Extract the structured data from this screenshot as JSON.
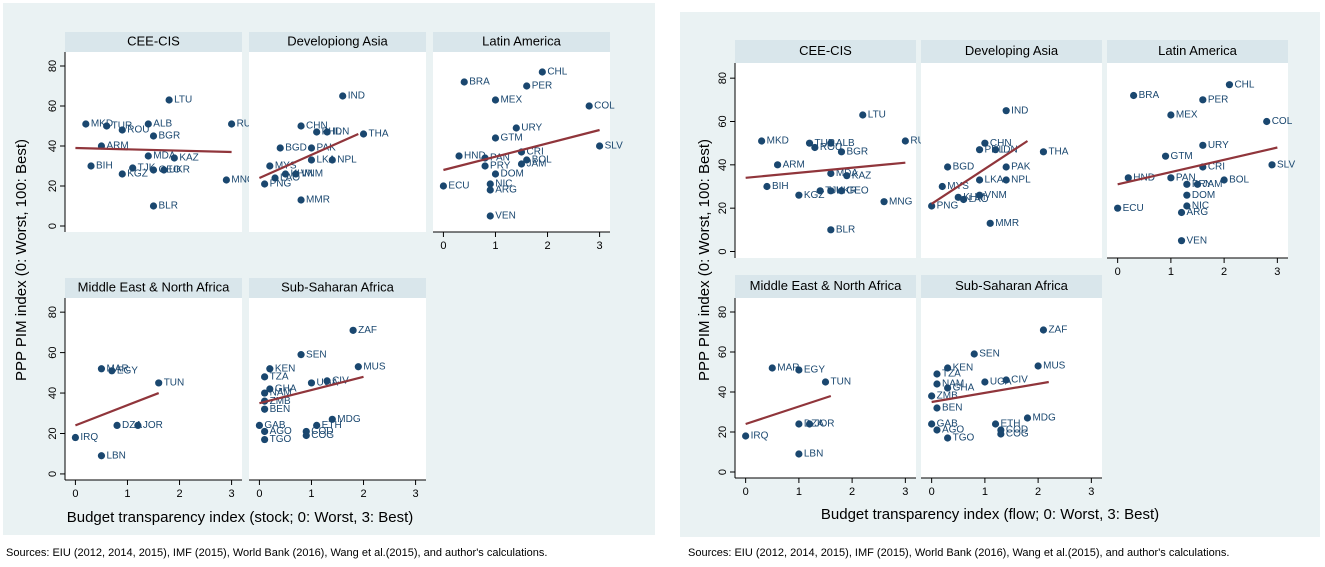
{
  "chart_data": [
    {
      "type": "scatter",
      "ylabel": "PPP PIM index (0: Worst, 100: Best)",
      "xlabel": "Budget transparency index (stock; 0: Worst, 3: Best)",
      "source": "Sources: EIU (2012, 2014, 2015), IMF (2015), World Bank (2016), Wang et al.(2015), and author's calculations.",
      "xlim": [
        -0.2,
        3.2
      ],
      "ylim": [
        -3,
        87
      ],
      "xticks": [
        0,
        1,
        2,
        3
      ],
      "yticks": [
        0,
        20,
        40,
        60,
        80
      ],
      "point_color": "#1a476f",
      "fit_color": "#90353b",
      "panels": [
        {
          "title": "CEE-CIS",
          "labels": [
            "LTU",
            "MKD",
            "TUR",
            "ROU",
            "ALB",
            "BGR",
            "RUS",
            "ARM",
            "MDA",
            "KAZ",
            "BIH",
            "TJK",
            "KGZ",
            "UKR",
            "GEO",
            "MNG",
            "BLR"
          ],
          "x": [
            1.8,
            0.2,
            0.6,
            0.9,
            1.4,
            1.5,
            3.0,
            0.5,
            1.4,
            1.9,
            0.3,
            1.1,
            0.9,
            1.7,
            1.5,
            2.9,
            1.5
          ],
          "values": [
            63,
            51,
            50,
            48,
            51,
            45,
            51,
            40,
            35,
            34,
            30,
            29,
            26,
            28,
            28,
            23,
            10
          ],
          "fit_x": [
            0,
            3
          ],
          "fit_y": [
            39,
            37
          ]
        },
        {
          "title": "Developiong Asia",
          "labels": [
            "IND",
            "CHN",
            "PHL",
            "IDN",
            "THA",
            "BGD",
            "PAK",
            "LKA",
            "NPL",
            "MYS",
            "KHM",
            "VNM",
            "LAO",
            "PNG",
            "MMR"
          ],
          "x": [
            1.6,
            0.8,
            1.1,
            1.3,
            2.0,
            0.4,
            1.0,
            1.0,
            1.4,
            0.2,
            0.5,
            0.7,
            0.3,
            0.1,
            0.8
          ],
          "values": [
            65,
            50,
            47,
            47,
            46,
            39,
            39,
            33,
            33,
            30,
            26,
            26,
            24,
            21,
            13
          ],
          "fit_x": [
            0,
            1.9
          ],
          "fit_y": [
            24,
            46
          ]
        },
        {
          "title": "Latin America",
          "labels": [
            "CHL",
            "BRA",
            "PER",
            "MEX",
            "COL",
            "URY",
            "GTM",
            "CRI",
            "SLV",
            "HND",
            "PAN",
            "BOL",
            "JAM",
            "PRY",
            "DOM",
            "NIC",
            "ARG",
            "ECU",
            "VEN"
          ],
          "x": [
            1.9,
            0.4,
            1.6,
            1.0,
            2.8,
            1.4,
            1.0,
            1.5,
            3.0,
            0.3,
            0.8,
            1.6,
            1.5,
            0.8,
            1.0,
            0.9,
            0.9,
            0,
            0.9
          ],
          "values": [
            77,
            72,
            70,
            63,
            60,
            49,
            44,
            37,
            40,
            35,
            34,
            33,
            31,
            30,
            26,
            21,
            18,
            20,
            5
          ],
          "fit_x": [
            0,
            3
          ],
          "fit_y": [
            28,
            48
          ]
        },
        {
          "title": "Middle East & North Africa",
          "labels": [
            "MAR",
            "EGY",
            "TUN",
            "DZA",
            "JOR",
            "IRQ",
            "LBN"
          ],
          "x": [
            0.5,
            0.7,
            1.6,
            0.8,
            1.2,
            0,
            0.5
          ],
          "values": [
            52,
            51,
            45,
            24,
            24,
            18,
            9
          ],
          "fit_x": [
            0,
            1.6
          ],
          "fit_y": [
            24,
            40
          ]
        },
        {
          "title": "Sub-Saharan Africa",
          "labels": [
            "ZAF",
            "SEN",
            "MUS",
            "KEN",
            "CIV",
            "UGA",
            "TZA",
            "GHA",
            "NAM",
            "ZMB",
            "BEN",
            "MDG",
            "ETH",
            "COD",
            "COG",
            "GAB",
            "AGO",
            "TGO"
          ],
          "x": [
            1.8,
            0.8,
            1.9,
            0.2,
            1.3,
            1.0,
            0.1,
            0.2,
            0.1,
            0.1,
            0.1,
            1.4,
            1.1,
            0.9,
            0.9,
            0,
            0.1,
            0.1
          ],
          "values": [
            71,
            59,
            53,
            52,
            46,
            45,
            48,
            42,
            40,
            36,
            32,
            27,
            24,
            21,
            19,
            24,
            21,
            17
          ],
          "fit_x": [
            0,
            2
          ],
          "fit_y": [
            35,
            48
          ]
        }
      ]
    },
    {
      "type": "scatter",
      "ylabel": "PPP PIM index (0: Worst, 100: Best)",
      "xlabel": "Budget transparency index (flow; 0: Worst, 3: Best)",
      "source": "Sources: EIU (2012, 2014, 2015), IMF (2015), World Bank (2016), Wang et al.(2015), and author's calculations.",
      "xlim": [
        -0.2,
        3.2
      ],
      "ylim": [
        -3,
        87
      ],
      "xticks": [
        0,
        1,
        2,
        3
      ],
      "yticks": [
        0,
        20,
        40,
        60,
        80
      ],
      "point_color": "#1a476f",
      "fit_color": "#90353b",
      "panels": [
        {
          "title": "CEE-CIS",
          "labels": [
            "LTU",
            "MKD",
            "TUR",
            "ROU",
            "ALB",
            "BGR",
            "RUS",
            "ARM",
            "MDA",
            "KAZ",
            "BIH",
            "KGZ",
            "TJK",
            "UKR",
            "GEO",
            "MNG",
            "BLR"
          ],
          "x": [
            2.2,
            0.3,
            1.2,
            1.3,
            1.6,
            1.8,
            3.0,
            0.6,
            1.6,
            1.9,
            0.4,
            1.0,
            1.4,
            1.6,
            1.8,
            2.6,
            1.6
          ],
          "values": [
            63,
            51,
            50,
            48,
            50,
            46,
            51,
            40,
            36,
            35,
            30,
            26,
            28,
            28,
            28,
            23,
            10
          ],
          "fit_x": [
            0,
            3
          ],
          "fit_y": [
            34,
            41
          ]
        },
        {
          "title": "Developing Asia",
          "labels": [
            "IND",
            "CHN",
            "PHL",
            "IDN",
            "THA",
            "BGD",
            "PAK",
            "LKA",
            "NPL",
            "MYS",
            "KHM",
            "LAO",
            "VNM",
            "PNG",
            "MMR"
          ],
          "x": [
            1.4,
            1.0,
            0.9,
            1.2,
            2.1,
            0.3,
            1.4,
            0.9,
            1.4,
            0.2,
            0.5,
            0.6,
            0.9,
            0,
            1.1
          ],
          "values": [
            65,
            50,
            47,
            47,
            46,
            39,
            39,
            33,
            33,
            30,
            25,
            24,
            26,
            21,
            13
          ],
          "fit_x": [
            0,
            1.8
          ],
          "fit_y": [
            22,
            51
          ]
        },
        {
          "title": "Latin America",
          "labels": [
            "CHL",
            "BRA",
            "PER",
            "MEX",
            "COL",
            "URY",
            "GTM",
            "CRI",
            "SLV",
            "HND",
            "PAN",
            "BOL",
            "PRY",
            "JAM",
            "DOM",
            "NIC",
            "ARG",
            "ECU",
            "VEN"
          ],
          "x": [
            2.1,
            0.3,
            1.6,
            1.0,
            2.8,
            1.6,
            0.9,
            1.6,
            2.9,
            0.2,
            1.0,
            2.0,
            1.3,
            1.5,
            1.3,
            1.3,
            1.2,
            0,
            1.2
          ],
          "values": [
            77,
            72,
            70,
            63,
            60,
            49,
            44,
            39,
            40,
            34,
            34,
            33,
            31,
            31,
            26,
            21,
            18,
            20,
            5
          ],
          "fit_x": [
            0,
            3
          ],
          "fit_y": [
            31,
            48
          ]
        },
        {
          "title": "Middle East & North Africa",
          "labels": [
            "MAR",
            "EGY",
            "TUN",
            "DZA",
            "JOR",
            "IRQ",
            "LBN"
          ],
          "x": [
            0.5,
            1.0,
            1.5,
            1.0,
            1.2,
            0,
            1.0
          ],
          "values": [
            52,
            51,
            45,
            24,
            24,
            18,
            9
          ],
          "fit_x": [
            0,
            1.6
          ],
          "fit_y": [
            24,
            38
          ]
        },
        {
          "title": "Sub-Saharan Africa",
          "labels": [
            "ZAF",
            "SEN",
            "MUS",
            "KEN",
            "CIV",
            "UGA",
            "TZA",
            "GHA",
            "NAM",
            "ZMB",
            "BEN",
            "MDG",
            "ETH",
            "COD",
            "COG",
            "GAB",
            "AGO",
            "TGO"
          ],
          "x": [
            2.1,
            0.8,
            2.0,
            0.3,
            1.4,
            1.0,
            0.1,
            0.3,
            0.1,
            0,
            0.1,
            1.8,
            1.2,
            1.3,
            1.3,
            0,
            0.1,
            0.3
          ],
          "values": [
            71,
            59,
            53,
            52,
            46,
            45,
            49,
            42,
            44,
            38,
            32,
            27,
            24,
            21,
            19,
            24,
            21,
            17
          ],
          "fit_x": [
            0,
            2.2
          ],
          "fit_y": [
            35,
            45
          ]
        }
      ]
    }
  ]
}
